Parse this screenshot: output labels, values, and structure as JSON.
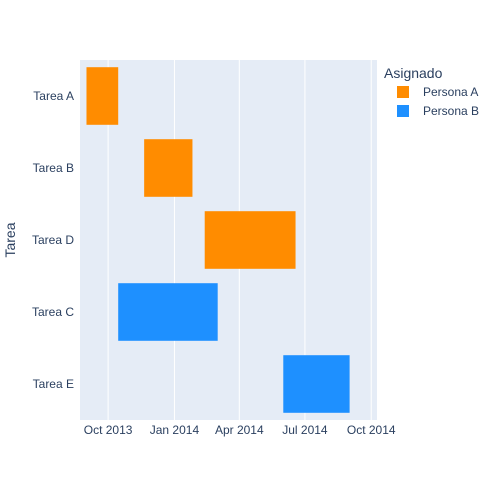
{
  "chart_data": {
    "type": "gantt",
    "ylabel": "Tarea",
    "xlabel": "",
    "categories": [
      "Tarea A",
      "Tarea B",
      "Tarea D",
      "Tarea C",
      "Tarea E"
    ],
    "x_ticks": [
      "2013-10-01",
      "2014-01-01",
      "2014-04-01",
      "2014-07-01",
      "2014-10-01"
    ],
    "x_tick_labels": [
      "Oct 2013",
      "Jan 2014",
      "Apr 2014",
      "Jul 2014",
      "Oct 2014"
    ],
    "xlim": [
      "2013-08-23",
      "2014-10-09"
    ],
    "legend": {
      "title": "Asignado",
      "placement": "top-right",
      "entries": [
        {
          "name": "Persona A",
          "color": "#ff8c00"
        },
        {
          "name": "Persona B",
          "color": "#1e90ff"
        }
      ]
    },
    "series": [
      {
        "name": "Persona A",
        "color": "#ff8c00",
        "tasks": [
          {
            "task": "Tarea A",
            "start": "2013-09-01",
            "end": "2013-10-15"
          },
          {
            "task": "Tarea B",
            "start": "2013-11-20",
            "end": "2014-01-26"
          },
          {
            "task": "Tarea D",
            "start": "2014-02-12",
            "end": "2014-06-18"
          }
        ]
      },
      {
        "name": "Persona B",
        "color": "#1e90ff",
        "tasks": [
          {
            "task": "Tarea C",
            "start": "2013-10-15",
            "end": "2014-03-02"
          },
          {
            "task": "Tarea E",
            "start": "2014-06-01",
            "end": "2014-09-01"
          }
        ]
      }
    ],
    "plot_background": "#e5ecf6",
    "grid": true
  }
}
